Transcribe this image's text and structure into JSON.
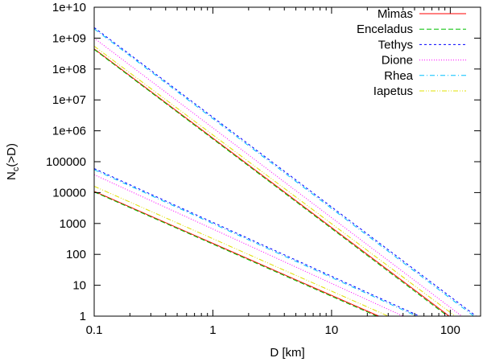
{
  "chart_data": {
    "type": "line",
    "title": "",
    "xlabel": "D [km]",
    "ylabel": {
      "main": "N",
      "sub": "c",
      "rest": "(>D)"
    },
    "x_scale": "log",
    "y_scale": "log",
    "xlim": [
      0.1,
      180
    ],
    "ylim": [
      1,
      10000000000.0
    ],
    "x_ticks": [
      {
        "value": 0.1,
        "label": "0.1"
      },
      {
        "value": 1,
        "label": "1"
      },
      {
        "value": 10,
        "label": "10"
      },
      {
        "value": 100,
        "label": "100"
      }
    ],
    "y_ticks": [
      {
        "value": 1,
        "label": "1"
      },
      {
        "value": 10,
        "label": "10"
      },
      {
        "value": 100,
        "label": "100"
      },
      {
        "value": 1000,
        "label": "1000"
      },
      {
        "value": 10000,
        "label": "10000"
      },
      {
        "value": 100000,
        "label": "100000"
      },
      {
        "value": 1000000,
        "label": "1e+06"
      },
      {
        "value": 10000000,
        "label": "1e+07"
      },
      {
        "value": 100000000,
        "label": "1e+08"
      },
      {
        "value": 1000000000,
        "label": "1e+09"
      },
      {
        "value": 10000000000,
        "label": "1e+10"
      }
    ],
    "grid": false,
    "legend_position": "top-right",
    "series": [
      {
        "name": "Mimas",
        "color": "#ff0000",
        "dash": "solid",
        "lines": [
          {
            "x": [
              0.1,
              98
            ],
            "y": [
              450000000.0,
              1
            ]
          },
          {
            "x": [
              0.1,
              25
            ],
            "y": [
              11000,
              1
            ]
          }
        ]
      },
      {
        "name": "Enceladus",
        "color": "#00c000",
        "dash": "long-dash",
        "lines": [
          {
            "x": [
              0.1,
              95
            ],
            "y": [
              430000000.0,
              1
            ]
          },
          {
            "x": [
              0.1,
              24
            ],
            "y": [
              10500,
              1
            ]
          }
        ]
      },
      {
        "name": "Tethys",
        "color": "#0000ff",
        "dash": "short-dash",
        "lines": [
          {
            "x": [
              0.1,
              165
            ],
            "y": [
              2200000000.0,
              1
            ]
          },
          {
            "x": [
              0.1,
              55
            ],
            "y": [
              60000,
              1
            ]
          }
        ]
      },
      {
        "name": "Dione",
        "color": "#ff00ff",
        "dash": "dotted",
        "lines": [
          {
            "x": [
              0.1,
              125
            ],
            "y": [
              1000000000.0,
              1
            ]
          },
          {
            "x": [
              0.1,
              40
            ],
            "y": [
              38000,
              1
            ]
          }
        ]
      },
      {
        "name": "Rhea",
        "color": "#00c0ff",
        "dash": "dash-dot",
        "lines": [
          {
            "x": [
              0.1,
              158
            ],
            "y": [
              2000000000.0,
              1
            ]
          },
          {
            "x": [
              0.1,
              52
            ],
            "y": [
              55000,
              1
            ]
          }
        ]
      },
      {
        "name": "Iapetus",
        "color": "#e0e000",
        "dash": "dash-dot-dot",
        "lines": [
          {
            "x": [
              0.1,
              110
            ],
            "y": [
              550000000.0,
              1
            ]
          },
          {
            "x": [
              0.1,
              30
            ],
            "y": [
              16000,
              1
            ]
          }
        ]
      }
    ]
  }
}
